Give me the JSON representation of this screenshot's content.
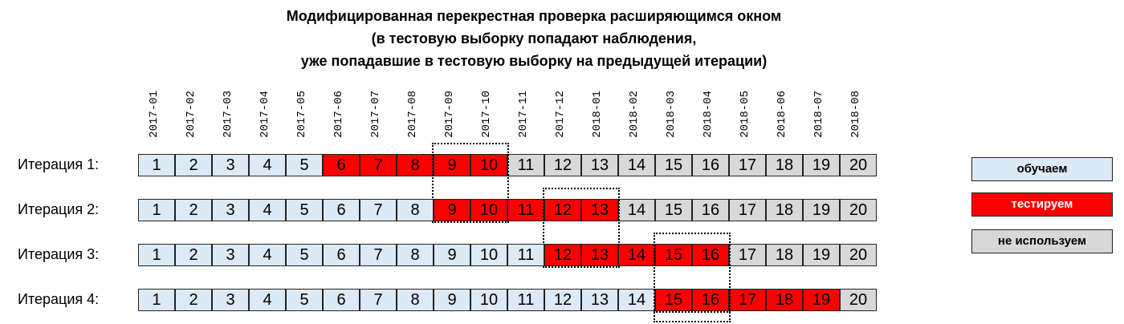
{
  "title": {
    "lines": [
      "Модифицированная перекрестная проверка расширяющимся окном",
      "(в тестовую выборку попадают наблюдения,",
      "уже попадавшие в тестовую выборку на предыдущей итерации)"
    ]
  },
  "months": [
    "2017-01",
    "2017-02",
    "2017-03",
    "2017-04",
    "2017-05",
    "2017-06",
    "2017-07",
    "2017-08",
    "2017-09",
    "2017-10",
    "2017-11",
    "2017-12",
    "2018-01",
    "2018-02",
    "2018-03",
    "2018-04",
    "2018-05",
    "2018-06",
    "2018-07",
    "2018-08"
  ],
  "colors": {
    "train": "#dce9f6",
    "test": "#ff0000",
    "unused": "#d8d8d8"
  },
  "iterations": [
    {
      "label": "Итерация 1:",
      "train_until": 5,
      "test_from": 6,
      "test_to": 10,
      "highlight": [
        9,
        10
      ]
    },
    {
      "label": "Итерация 2:",
      "train_until": 8,
      "test_from": 9,
      "test_to": 13,
      "highlight": [
        12,
        13
      ]
    },
    {
      "label": "Итерация 3:",
      "train_until": 11,
      "test_from": 12,
      "test_to": 16,
      "highlight": [
        15,
        16
      ]
    },
    {
      "label": "Итерация 4:",
      "train_until": 14,
      "test_from": 15,
      "test_to": 19,
      "highlight": []
    }
  ],
  "legend": [
    {
      "label": "обучаем",
      "kind": "train"
    },
    {
      "label": "тестируем",
      "kind": "test"
    },
    {
      "label": "не используем",
      "kind": "unused"
    }
  ]
}
